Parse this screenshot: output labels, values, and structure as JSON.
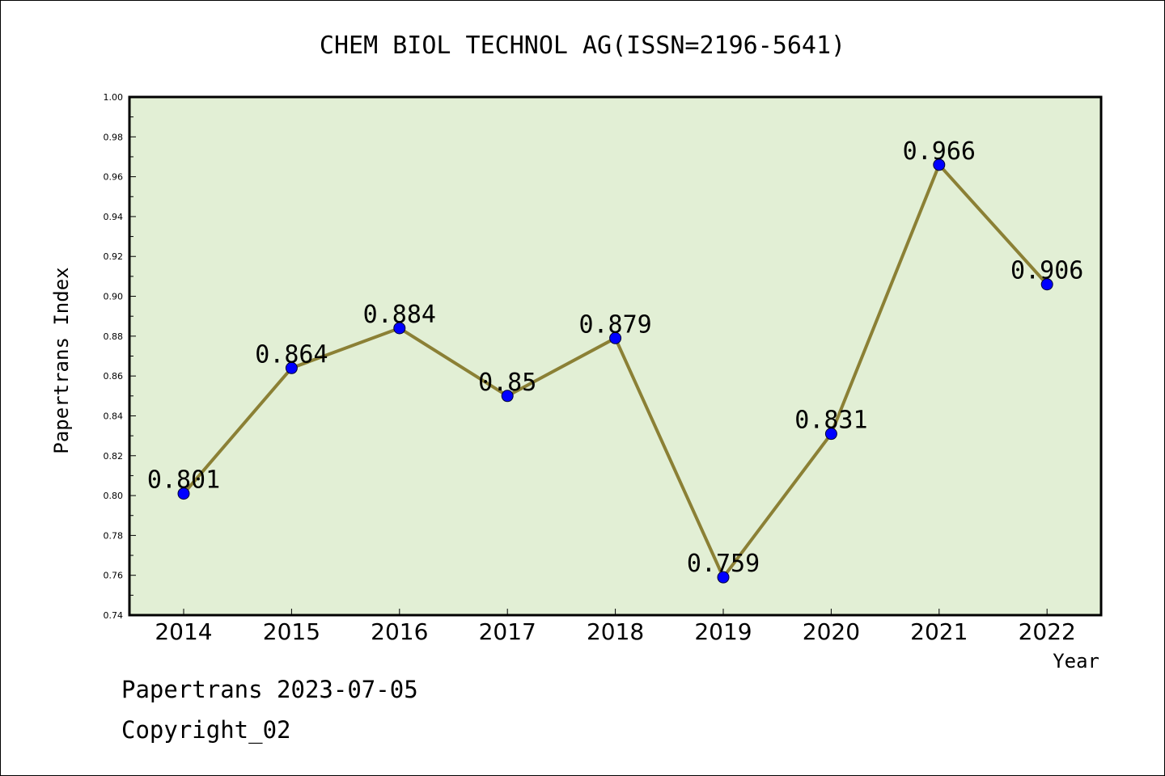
{
  "chart_data": {
    "type": "line",
    "title": "CHEM BIOL TECHNOL AG(ISSN=2196-5641)",
    "xlabel": "Year",
    "ylabel": "Papertrans Index",
    "categories": [
      "2014",
      "2015",
      "2016",
      "2017",
      "2018",
      "2019",
      "2020",
      "2021",
      "2022"
    ],
    "values": [
      0.801,
      0.864,
      0.884,
      0.85,
      0.879,
      0.759,
      0.831,
      0.966,
      0.906
    ],
    "data_labels": [
      "0.801",
      "0.864",
      "0.884",
      "0.85",
      "0.879",
      "0.759",
      "0.831",
      "0.966",
      "0.906"
    ],
    "ylim": [
      0.74,
      1.0
    ],
    "yticks": [
      "0.74",
      "0.76",
      "0.78",
      "0.80",
      "0.82",
      "0.84",
      "0.86",
      "0.88",
      "0.90",
      "0.92",
      "0.94",
      "0.96",
      "0.98",
      "1.00"
    ],
    "grid": false,
    "colors": {
      "plot_background": "#e2efd5",
      "line": "#8b8035",
      "marker": "#0000ff"
    }
  },
  "footer": {
    "line1": "Papertrans 2023-07-05",
    "line2": "Copyright_02"
  }
}
